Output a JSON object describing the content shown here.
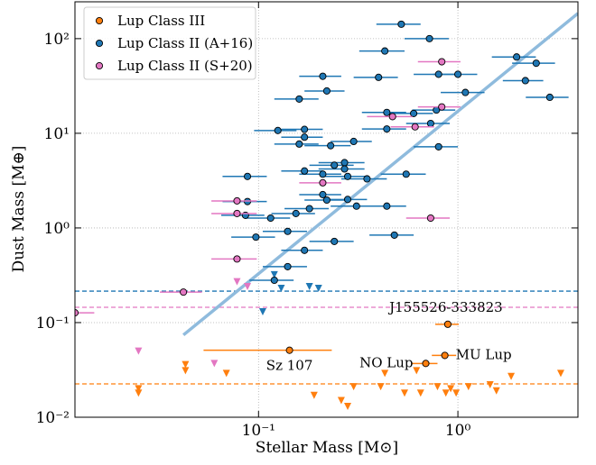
{
  "chart_data": {
    "type": "scatter",
    "xlabel": "Stellar Mass [M⊙]",
    "ylabel": "Dust Mass [M⊕]",
    "xscale": "log",
    "yscale": "log",
    "grid": true,
    "legend": "upper left",
    "xlim": [
      0.012,
      4
    ],
    "ylim": [
      0.01,
      245
    ],
    "xticks": [
      {
        "value": 0.1,
        "label": "10⁻¹"
      },
      {
        "value": 1,
        "label": "10⁰"
      }
    ],
    "yticks": [
      {
        "value": 0.01,
        "label": "10⁻²"
      },
      {
        "value": 0.1,
        "label": "10⁻¹"
      },
      {
        "value": 1,
        "label": "10⁰"
      },
      {
        "value": 10,
        "label": "10¹"
      },
      {
        "value": 100,
        "label": "10²"
      }
    ],
    "series": [
      {
        "name": "Lup Class III",
        "color": "#ff7f0e",
        "x": [
          0.143,
          0.69,
          0.86,
          0.89
        ],
        "values": [
          0.051,
          0.037,
          0.045,
          0.096
        ],
        "xerr": [
          0.09,
          0.1,
          0.12,
          0.12
        ],
        "upper_limits": {
          "x": [
            0.025,
            0.025,
            0.043,
            0.043,
            0.069,
            0.19,
            0.26,
            0.28,
            0.3,
            0.43,
            0.41,
            0.54,
            0.65,
            0.79,
            0.87,
            0.92,
            0.98,
            1.13,
            1.45,
            1.56,
            1.85,
            3.28,
            0.62
          ],
          "values": [
            0.02,
            0.018,
            0.031,
            0.036,
            0.029,
            0.017,
            0.015,
            0.013,
            0.021,
            0.029,
            0.021,
            0.018,
            0.018,
            0.021,
            0.018,
            0.02,
            0.018,
            0.021,
            0.022,
            0.019,
            0.027,
            0.029,
            0.031
          ]
        }
      },
      {
        "name": "Lup Class II (A+16)",
        "color": "#1f77b4",
        "x": [
          0.52,
          0.43,
          0.72,
          1.97,
          2.47,
          0.21,
          0.22,
          0.16,
          0.4,
          0.8,
          1.0,
          1.09,
          2.89,
          2.18,
          0.125,
          0.17,
          0.17,
          0.16,
          0.23,
          0.3,
          0.44,
          0.6,
          0.78,
          0.73,
          0.8,
          0.44,
          0.17,
          0.24,
          0.27,
          0.27,
          0.21,
          0.28,
          0.35,
          0.55,
          0.088,
          0.088,
          0.086,
          0.115,
          0.154,
          0.21,
          0.22,
          0.28,
          0.18,
          0.31,
          0.44,
          0.097,
          0.14,
          0.17,
          0.24,
          0.48,
          0.14,
          0.12
        ],
        "values": [
          142,
          74,
          100,
          64,
          55,
          40,
          28,
          23,
          39,
          42,
          42,
          27,
          24,
          36,
          10.7,
          11,
          9.1,
          7.7,
          7.4,
          8.2,
          16.6,
          16.2,
          17.6,
          12.7,
          7.2,
          11.1,
          4.0,
          4.6,
          4.9,
          4.2,
          3.7,
          3.5,
          3.3,
          3.7,
          3.5,
          1.9,
          1.36,
          1.27,
          1.42,
          2.25,
          1.97,
          2.0,
          1.6,
          1.7,
          1.7,
          0.8,
          0.92,
          0.58,
          0.72,
          0.84,
          0.39,
          0.28
        ],
        "xerr": [
          0.13,
          0.11,
          0.18,
          0.49,
          0.6,
          0.05,
          0.05,
          0.04,
          0.1,
          0.2,
          0.25,
          0.27,
          0.7,
          0.5,
          0.03,
          0.04,
          0.04,
          0.04,
          0.06,
          0.07,
          0.11,
          0.15,
          0.19,
          0.18,
          0.2,
          0.11,
          0.04,
          0.06,
          0.07,
          0.07,
          0.05,
          0.07,
          0.09,
          0.14,
          0.022,
          0.022,
          0.021,
          0.029,
          0.038,
          0.05,
          0.05,
          0.07,
          0.045,
          0.08,
          0.11,
          0.024,
          0.035,
          0.04,
          0.06,
          0.12,
          0.035,
          0.03
        ],
        "upper_limits": {
          "x": [
            0.12,
            0.13,
            0.18,
            0.2,
            0.105
          ],
          "values": [
            0.32,
            0.23,
            0.24,
            0.23,
            0.13
          ]
        }
      },
      {
        "name": "Lup Class II (S+20)",
        "color": "#e377c2",
        "x": [
          0.83,
          0.83,
          0.47,
          0.61,
          0.21,
          0.078,
          0.078,
          0.078,
          0.042,
          0.012,
          0.73
        ],
        "values": [
          57,
          19,
          15,
          11.7,
          3.0,
          1.93,
          1.42,
          0.47,
          0.21,
          0.127,
          1.27
        ],
        "xerr": [
          0.2,
          0.2,
          0.12,
          0.15,
          0.05,
          0.02,
          0.02,
          0.02,
          0.01,
          0.003,
          0.18
        ],
        "upper_limits": {
          "x": [
            0.078,
            0.088,
            0.025,
            0.06
          ],
          "values": [
            0.27,
            0.24,
            0.05,
            0.037
          ]
        }
      }
    ],
    "hlines": [
      {
        "value": 0.215,
        "color": "#1f77b4"
      },
      {
        "value": 0.145,
        "color": "#e377c2"
      },
      {
        "value": 0.0225,
        "color": "#ff7f0e"
      }
    ],
    "fit": {
      "color": "#8fbbdd",
      "x": [
        0.042,
        4
      ],
      "values": [
        0.074,
        185
      ]
    },
    "annotations": [
      "Sz 107",
      "NO Lup",
      "MU Lup",
      "J155526-333823"
    ]
  }
}
